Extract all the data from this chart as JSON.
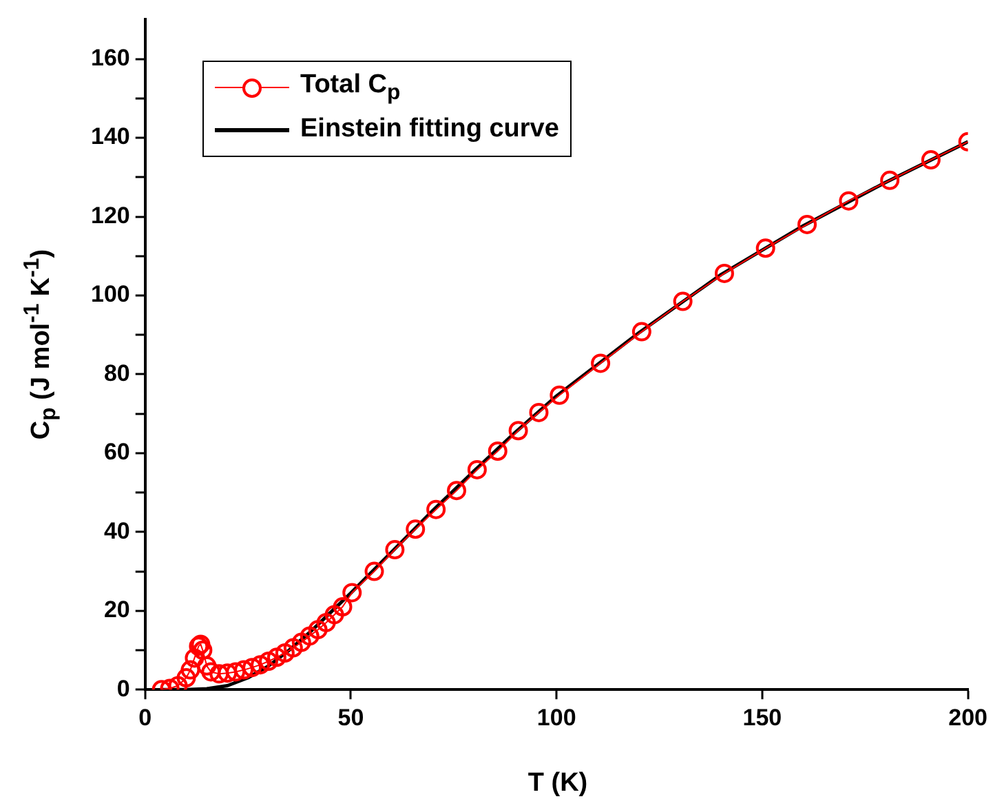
{
  "chart_data": {
    "type": "line",
    "xlabel": "T (K)",
    "ylabel": "C$_{p}$ (J mol$^{-1}$ K$^{-1}$)",
    "xlim": [
      0,
      200
    ],
    "xticks": [
      0,
      50,
      100,
      150,
      200
    ],
    "ylim": [
      0,
      170
    ],
    "yticks": [
      0,
      {
        "value": 10,
        "label": null
      },
      20,
      {
        "value": 30,
        "label": null
      },
      40,
      {
        "value": 50,
        "label": null
      },
      60,
      {
        "value": 70,
        "label": null
      },
      80,
      {
        "value": 90,
        "label": null
      },
      100,
      {
        "value": 110,
        "label": null
      },
      120,
      {
        "value": 130,
        "label": null
      },
      140,
      {
        "value": 150,
        "label": null
      },
      160
    ],
    "grid": false,
    "legend": "top left",
    "series": [
      {
        "name": "Total C$_{p}$",
        "color": "#ff0000",
        "marker": "circle",
        "x": [
          4,
          6,
          8,
          10,
          11,
          12,
          13,
          13.5,
          14,
          15,
          16,
          18,
          20,
          22,
          24,
          26,
          28,
          30,
          32,
          34,
          36,
          38,
          40,
          42,
          44,
          46,
          48,
          50.3,
          55.7,
          60.7,
          65.7,
          70.7,
          75.7,
          80.7,
          85.7,
          90.7,
          95.7,
          100.7,
          110.7,
          120.7,
          130.7,
          140.8,
          150.8,
          160.9,
          171,
          181,
          191,
          200
        ],
        "values": [
          0,
          0.3,
          1,
          3,
          5,
          8,
          11,
          11.5,
          10,
          6,
          4.5,
          4,
          4.2,
          4.5,
          5,
          5.6,
          6.3,
          7.2,
          8.2,
          9.3,
          10.6,
          12,
          13.6,
          15.2,
          17,
          19,
          21,
          24.6,
          30,
          35.5,
          40.7,
          45.7,
          50.5,
          55.8,
          60.5,
          65.7,
          70.3,
          74.7,
          82.8,
          90.8,
          98.5,
          105.6,
          112,
          118,
          124,
          129.2,
          134.4,
          139
        ]
      },
      {
        "name": "Einstein fitting curve",
        "color": "#000000",
        "marker": "none",
        "x": [
          4,
          10,
          15,
          20,
          25,
          30,
          35,
          40,
          45,
          50,
          60,
          70,
          80,
          90,
          100,
          120,
          140,
          160,
          180,
          200
        ],
        "values": [
          0,
          0,
          0.2,
          1,
          3,
          6,
          10,
          14.5,
          19.5,
          24.5,
          35,
          45.5,
          55.5,
          65.3,
          74.5,
          90.5,
          105.3,
          117.7,
          128.7,
          139
        ]
      }
    ]
  }
}
